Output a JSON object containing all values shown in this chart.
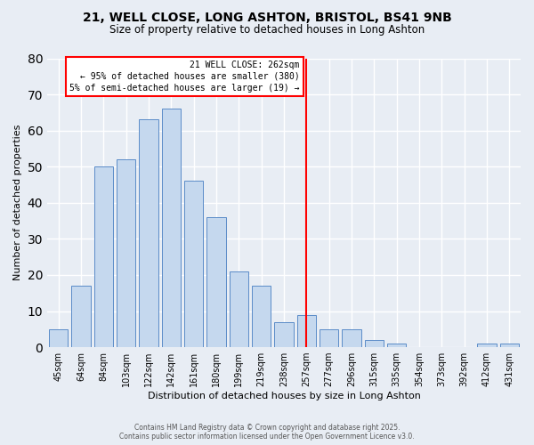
{
  "title1": "21, WELL CLOSE, LONG ASHTON, BRISTOL, BS41 9NB",
  "title2": "Size of property relative to detached houses in Long Ashton",
  "xlabel": "Distribution of detached houses by size in Long Ashton",
  "ylabel": "Number of detached properties",
  "bin_labels": [
    "45sqm",
    "64sqm",
    "84sqm",
    "103sqm",
    "122sqm",
    "142sqm",
    "161sqm",
    "180sqm",
    "199sqm",
    "219sqm",
    "238sqm",
    "257sqm",
    "277sqm",
    "296sqm",
    "315sqm",
    "335sqm",
    "354sqm",
    "373sqm",
    "392sqm",
    "412sqm",
    "431sqm"
  ],
  "bar_heights": [
    5,
    17,
    50,
    52,
    63,
    66,
    46,
    36,
    21,
    17,
    7,
    9,
    5,
    5,
    2,
    1,
    0,
    0,
    0,
    1,
    1
  ],
  "bar_color": "#c5d8ee",
  "bar_edgecolor": "#5b8cc8",
  "bar_linewidth": 0.7,
  "vline_x_index": 11,
  "vline_color": "red",
  "vline_linewidth": 1.5,
  "annotation_title": "21 WELL CLOSE: 262sqm",
  "annotation_line1": "← 95% of detached houses are smaller (380)",
  "annotation_line2": "5% of semi-detached houses are larger (19) →",
  "annotation_box_color": "white",
  "annotation_box_edgecolor": "red",
  "ylim": [
    0,
    80
  ],
  "yticks": [
    0,
    10,
    20,
    30,
    40,
    50,
    60,
    70,
    80
  ],
  "background_color": "#e8edf4",
  "grid_color": "white",
  "title_fontsize": 10,
  "subtitle_fontsize": 8.5,
  "footer_line1": "Contains HM Land Registry data © Crown copyright and database right 2025.",
  "footer_line2": "Contains public sector information licensed under the Open Government Licence v3.0."
}
